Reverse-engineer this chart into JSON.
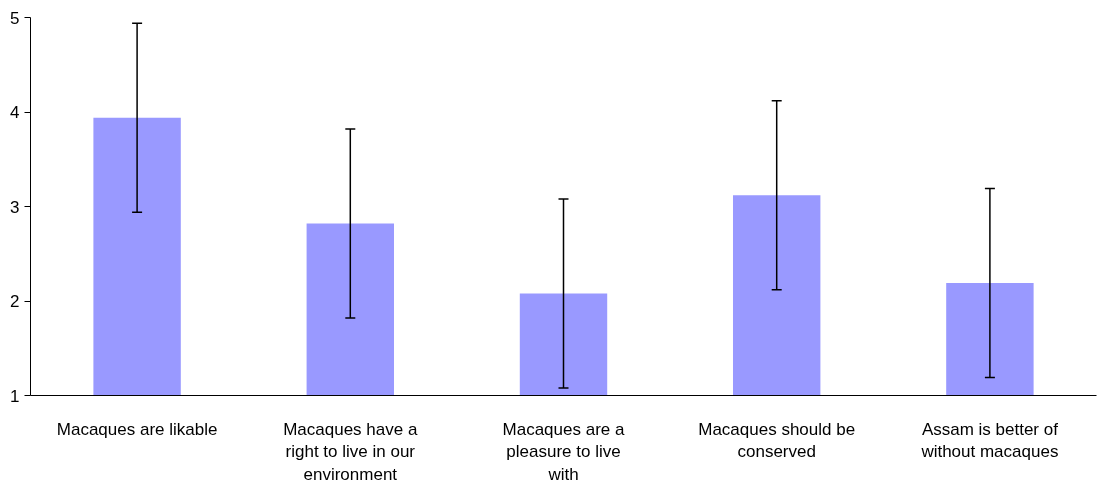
{
  "chart_data": {
    "type": "bar",
    "categories": [
      "Macaques are likable",
      "Macaques have a right to live in our environment",
      "Macaques are a pleasure to live with",
      "Macaques should be conserved",
      "Assam is better of without macaques"
    ],
    "values": [
      3.94,
      2.82,
      2.08,
      3.12,
      2.19
    ],
    "errors": [
      1.0,
      1.0,
      1.0,
      1.0,
      1.0
    ],
    "color": "#9999ff",
    "ylim": [
      1,
      5
    ],
    "yticks": [
      1,
      2,
      3,
      4,
      5
    ],
    "grid": false
  }
}
